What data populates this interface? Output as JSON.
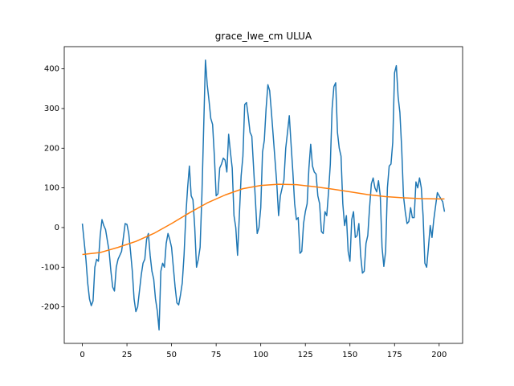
{
  "chart_data": {
    "type": "line",
    "title": "grace_lwe_cm ULUA",
    "xlim": [
      -10.15,
      213.15
    ],
    "ylim": [
      -292,
      456
    ],
    "xticks": [
      0,
      25,
      50,
      75,
      100,
      125,
      150,
      175,
      200
    ],
    "yticks": [
      -200,
      -100,
      0,
      100,
      200,
      300,
      400
    ],
    "series": [
      {
        "color": "#1f77b4",
        "x": [
          0,
          2,
          3,
          4,
          5,
          6,
          7,
          8,
          9,
          10,
          11,
          12,
          13,
          15,
          16,
          17,
          18,
          19,
          20,
          22,
          24,
          25,
          26,
          27,
          28,
          29,
          30,
          31,
          33,
          34,
          35,
          36,
          37,
          38,
          39,
          40,
          41,
          42,
          43,
          44,
          45,
          46,
          47,
          48,
          49,
          50,
          52,
          53,
          54,
          55,
          56,
          57,
          58,
          59,
          60,
          61,
          62,
          63,
          64,
          65,
          66,
          67,
          68,
          69,
          70,
          71,
          72,
          73,
          74,
          75,
          76,
          77,
          78,
          79,
          80,
          81,
          82,
          83,
          84,
          85,
          86,
          87,
          88,
          89,
          90,
          91,
          92,
          93,
          94,
          95,
          96,
          97,
          98,
          99,
          100,
          101,
          102,
          103,
          104,
          105,
          106,
          107,
          108,
          109,
          110,
          111,
          112,
          113,
          114,
          115,
          116,
          117,
          118,
          119,
          120,
          121,
          122,
          123,
          124,
          125,
          126,
          127,
          128,
          129,
          130,
          131,
          132,
          133,
          134,
          135,
          136,
          137,
          138,
          139,
          140,
          141,
          142,
          143,
          144,
          145,
          146,
          147,
          148,
          149,
          150,
          151,
          152,
          153,
          154,
          155,
          156,
          157,
          158,
          159,
          160,
          161,
          162,
          163,
          164,
          165,
          166,
          167,
          168,
          169,
          170,
          171,
          172,
          173,
          174,
          175,
          176,
          177,
          178,
          179,
          180,
          181,
          182,
          183,
          184,
          185,
          186,
          187,
          188,
          189,
          190,
          191,
          192,
          193,
          194,
          195,
          196,
          197,
          199,
          200,
          202,
          203
        ],
        "values": [
          10,
          -80,
          -140,
          -180,
          -197,
          -185,
          -100,
          -80,
          -85,
          -20,
          20,
          5,
          -5,
          -60,
          -110,
          -150,
          -160,
          -100,
          -80,
          -60,
          10,
          8,
          -15,
          -60,
          -110,
          -180,
          -212,
          -200,
          -120,
          -90,
          -80,
          -30,
          -15,
          -70,
          -110,
          -130,
          -180,
          -210,
          -258,
          -110,
          -90,
          -100,
          -40,
          -15,
          -30,
          -50,
          -150,
          -190,
          -195,
          -170,
          -140,
          -70,
          30,
          100,
          155,
          80,
          70,
          0,
          -100,
          -80,
          -50,
          80,
          250,
          422,
          360,
          320,
          275,
          260,
          180,
          80,
          85,
          150,
          160,
          175,
          170,
          140,
          235,
          190,
          150,
          30,
          0,
          -70,
          30,
          130,
          180,
          310,
          315,
          280,
          240,
          230,
          150,
          70,
          -15,
          0,
          50,
          190,
          220,
          300,
          360,
          345,
          290,
          230,
          170,
          110,
          30,
          80,
          100,
          120,
          200,
          240,
          282,
          210,
          140,
          60,
          20,
          25,
          -65,
          -60,
          10,
          40,
          60,
          150,
          210,
          155,
          140,
          135,
          80,
          60,
          -10,
          -15,
          40,
          30,
          90,
          160,
          300,
          355,
          365,
          240,
          200,
          180,
          60,
          5,
          30,
          -60,
          -85,
          20,
          40,
          -25,
          -20,
          10,
          -70,
          -115,
          -110,
          -40,
          -20,
          50,
          110,
          125,
          100,
          90,
          118,
          80,
          -50,
          -98,
          -60,
          100,
          155,
          160,
          215,
          390,
          408,
          330,
          290,
          200,
          80,
          40,
          10,
          15,
          50,
          25,
          25,
          115,
          100,
          125,
          100,
          30,
          -90,
          -100,
          -50,
          5,
          -25,
          20,
          88,
          80,
          65,
          40
        ]
      },
      {
        "color": "#ff7f0e",
        "x": [
          0,
          10,
          20,
          30,
          40,
          50,
          60,
          70,
          80,
          90,
          100,
          110,
          120,
          130,
          140,
          150,
          160,
          170,
          180,
          190,
          200,
          203
        ],
        "values": [
          -68,
          -63,
          -50,
          -35,
          -15,
          10,
          37,
          62,
          82,
          98,
          106,
          109,
          108,
          103,
          97,
          90,
          83,
          78,
          75,
          73,
          72,
          72
        ]
      }
    ]
  }
}
